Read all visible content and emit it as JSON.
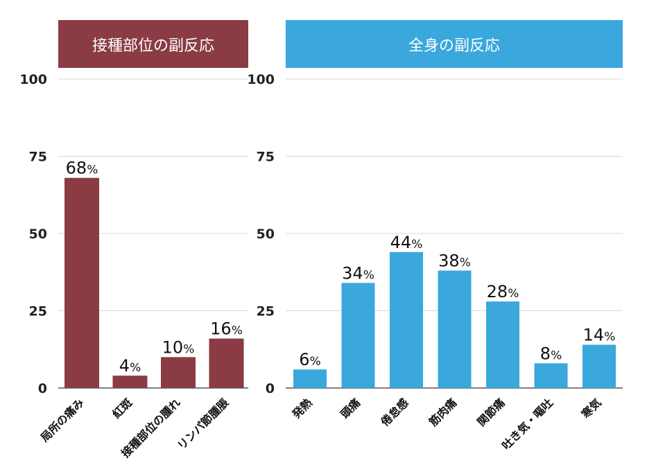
{
  "colors": {
    "left": "#8a3b43",
    "right": "#3aa7dd",
    "grid": "#d8d8d8",
    "axis": "#555555"
  },
  "chart_data": [
    {
      "type": "bar",
      "title": "接種部位の副反応",
      "categories": [
        "局所の痛み",
        "紅斑",
        "接種部位の腫れ",
        "リンパ節腫脹"
      ],
      "values": [
        68,
        4,
        10,
        16
      ],
      "value_labels": [
        "68%",
        "4%",
        "10%",
        "16%"
      ],
      "yticks": [
        "0",
        "25",
        "50",
        "75",
        "100"
      ],
      "ylim": [
        0,
        100
      ],
      "grid": true
    },
    {
      "type": "bar",
      "title": "全身の副反応",
      "categories": [
        "発熱",
        "頭痛",
        "倦怠感",
        "筋肉痛",
        "関節痛",
        "吐き気・嘔吐",
        "寒気"
      ],
      "values": [
        6,
        34,
        44,
        38,
        28,
        8,
        14
      ],
      "value_labels": [
        "6%",
        "34%",
        "44%",
        "38%",
        "28%",
        "8%",
        "14%"
      ],
      "yticks": [
        "0",
        "25",
        "50",
        "75",
        "100"
      ],
      "ylim": [
        0,
        100
      ],
      "grid": true
    }
  ]
}
